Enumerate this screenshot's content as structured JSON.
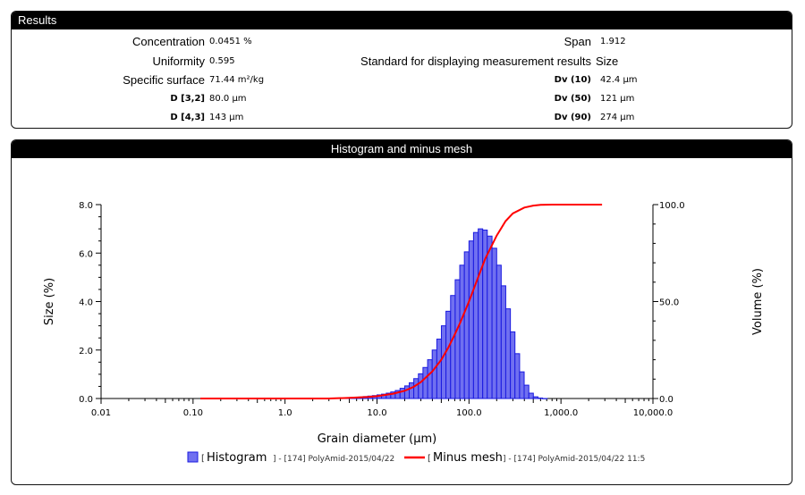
{
  "results": {
    "title": "Results",
    "left": [
      {
        "label": "Concentration",
        "value": "0.0451 %",
        "size": "big"
      },
      {
        "label": "Uniformity",
        "value": "0.595",
        "size": "big"
      },
      {
        "label": "Specific surface",
        "value": "71.44 m²/kg",
        "size": "big"
      },
      {
        "label": "D [3,2]",
        "value": "80.0 µm",
        "size": "small"
      },
      {
        "label": "D [4,3]",
        "value": "143 µm",
        "size": "small"
      }
    ],
    "right": [
      {
        "label": "Span",
        "value": "1.912",
        "size": "big",
        "valsize": "small"
      },
      {
        "label": "Standard for displaying measurement results",
        "value": "Size",
        "size": "big",
        "valsize": "big"
      },
      {
        "label": "Dv (10)",
        "value": "42.4 µm",
        "size": "small",
        "valsize": "small"
      },
      {
        "label": "Dv (50)",
        "value": "121 µm",
        "size": "small",
        "valsize": "small"
      },
      {
        "label": "Dv (90)",
        "value": "274 µm",
        "size": "small",
        "valsize": "small"
      }
    ]
  },
  "chart_panel": {
    "title": "Histogram and minus mesh"
  },
  "chart_data": {
    "type": "bar",
    "xlabel": "Grain diameter (μm)",
    "ylabel": "Size (%)",
    "y2label": "Volume (%)",
    "xscale": "log",
    "xlim": [
      0.01,
      10000
    ],
    "ylim": [
      0,
      8
    ],
    "y2lim": [
      0,
      100
    ],
    "x_ticks": [
      "0.01",
      "0.10",
      "1.0",
      "10.0",
      "100.0",
      "1,000.0",
      "10,000.0"
    ],
    "y_ticks": [
      "0.0",
      "2.0",
      "4.0",
      "6.0",
      "8.0"
    ],
    "y2_ticks": [
      "0.0",
      "50.0",
      "100.0"
    ],
    "colors": {
      "histogram": "#7070f0",
      "histogram_edge": "#1a1ae0",
      "minus_mesh": "#ff0000"
    },
    "histogram": {
      "bin_edges": [
        3.98,
        4.47,
        5.01,
        5.62,
        6.31,
        7.08,
        7.94,
        8.91,
        10.0,
        11.2,
        12.6,
        14.1,
        15.8,
        17.8,
        20.0,
        22.4,
        25.1,
        28.2,
        31.6,
        35.5,
        39.8,
        44.7,
        50.1,
        56.2,
        63.1,
        70.8,
        79.4,
        89.1,
        100,
        112,
        126,
        141,
        158,
        178,
        200,
        224,
        251,
        282,
        316,
        355,
        398,
        447,
        501,
        562,
        631,
        708
      ],
      "values": [
        0.02,
        0.03,
        0.04,
        0.05,
        0.06,
        0.08,
        0.1,
        0.12,
        0.15,
        0.18,
        0.22,
        0.27,
        0.33,
        0.42,
        0.52,
        0.65,
        0.82,
        1.02,
        1.28,
        1.6,
        2.0,
        2.45,
        3.0,
        3.6,
        4.25,
        4.9,
        5.5,
        6.05,
        6.5,
        6.85,
        7.0,
        6.95,
        6.7,
        6.2,
        5.5,
        4.65,
        3.7,
        2.75,
        1.85,
        1.1,
        0.55,
        0.22,
        0.07,
        0.02,
        0.0
      ]
    },
    "minus_mesh": {
      "x": [
        0.12,
        1.0,
        3.0,
        5.0,
        8.0,
        10.0,
        15.0,
        20.0,
        25.0,
        30.0,
        40.0,
        50.0,
        60.0,
        70.0,
        80.0,
        100.0,
        120.0,
        150.0,
        200.0,
        250.0,
        300.0,
        400.0,
        500.0,
        600.0,
        800.0,
        1000.0,
        2800.0
      ],
      "y": [
        0.0,
        0.0,
        0.0,
        0.3,
        0.8,
        1.2,
        2.5,
        4.0,
        6.0,
        8.5,
        14.0,
        20.0,
        26.5,
        33.0,
        39.0,
        50.0,
        60.0,
        72.0,
        84.0,
        91.5,
        95.5,
        98.5,
        99.5,
        99.9,
        100.0,
        100.0,
        100.0
      ]
    },
    "legend": [
      {
        "bracket_open": "[",
        "name": "Histogram",
        "suffix": "] - [174] PolyAmid-2015/04/22"
      },
      {
        "bracket_open": "[",
        "name": "Minus mesh",
        "suffix": "] - [174] PolyAmid-2015/04/22 11:5"
      }
    ],
    "legend_placement": "bottom"
  }
}
